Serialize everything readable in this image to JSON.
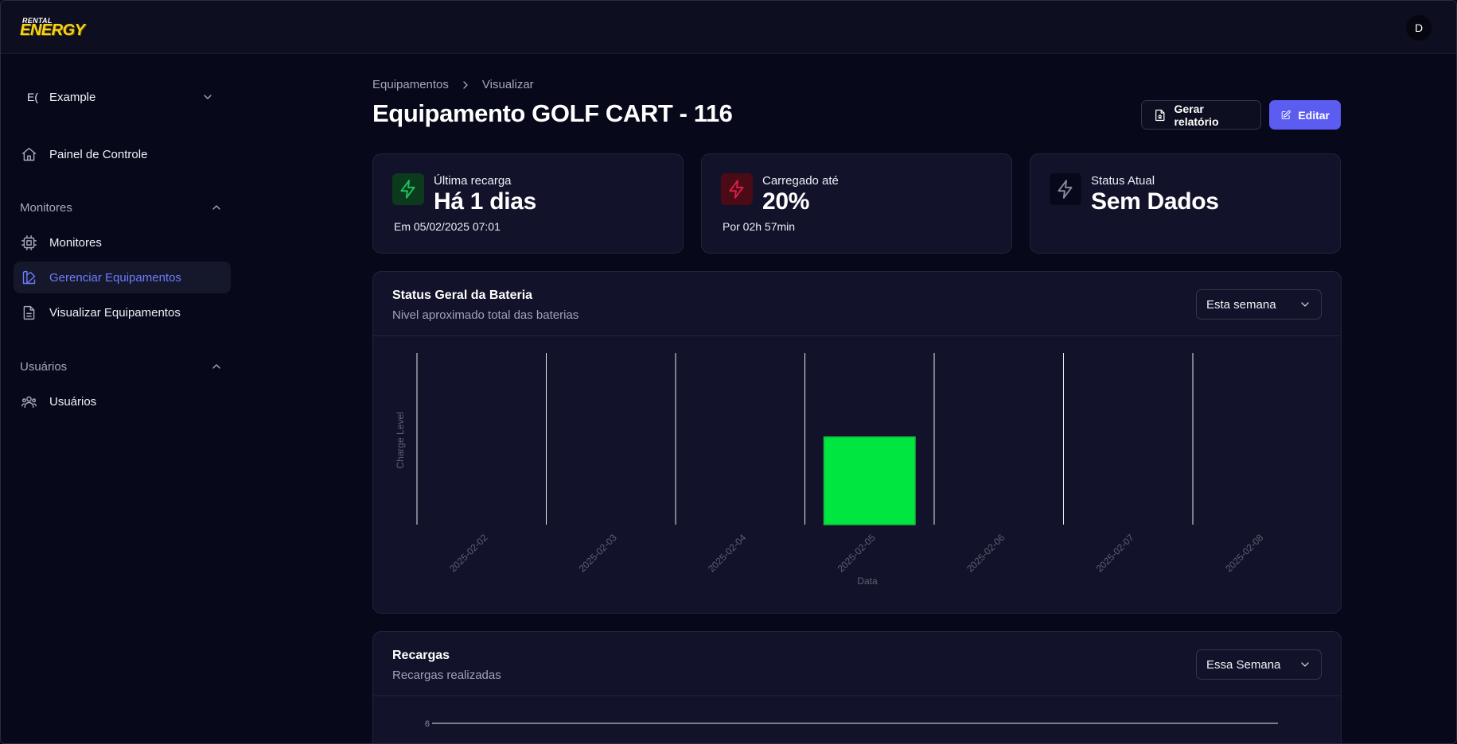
{
  "header": {
    "logo_top": "RENTAL",
    "logo_main": "ENERGY",
    "avatar_initial": "D"
  },
  "sidebar": {
    "org_initial": "E(",
    "org_name": "Example",
    "items": [
      {
        "label": "Painel de Controle",
        "icon": "home-icon"
      },
      {
        "label": "Monitores",
        "icon": "chip-icon"
      },
      {
        "label": "Gerenciar Equipamentos",
        "icon": "manage-equipment-icon",
        "active": true
      },
      {
        "label": "Visualizar Equipamentos",
        "icon": "document-icon"
      },
      {
        "label": "Usuários",
        "icon": "users-icon"
      }
    ],
    "sections": [
      {
        "label": "Monitores"
      },
      {
        "label": "Usuários"
      }
    ]
  },
  "breadcrumb": {
    "parent": "Equipamentos",
    "current": "Visualizar"
  },
  "page": {
    "title": "Equipamento GOLF CART - 116",
    "report_button": "Gerar relatório",
    "edit_button": "Editar"
  },
  "stats": [
    {
      "label": "Última recarga",
      "value": "Há 1 dias",
      "sub": "Em 05/02/2025 07:01",
      "icon": "bolt-green-icon",
      "color": "#22c55e"
    },
    {
      "label": "Carregado até",
      "value": "20%",
      "sub": "Por 02h 57min",
      "icon": "bolt-red-icon",
      "color": "#e11d48"
    },
    {
      "label": "Status Atual",
      "value": "Sem Dados",
      "sub": "",
      "icon": "bolt-gray-icon",
      "color": "#8a8ea3"
    }
  ],
  "battery_card": {
    "title": "Status Geral da Bateria",
    "subtitle": "Nivel aproximado total das baterias",
    "period": "Esta semana"
  },
  "recargas_card": {
    "title": "Recargas",
    "subtitle": "Recargas realizadas",
    "period": "Essa Semana"
  },
  "chart_data": [
    {
      "type": "bar",
      "categories": [
        "2025-02-02",
        "2025-02-03",
        "2025-02-04",
        "2025-02-05",
        "2025-02-06",
        "2025-02-07",
        "2025-02-08"
      ],
      "bars": [
        {
          "category": "2025-02-05",
          "low": 0,
          "high": 52
        }
      ],
      "xlabel": "Data",
      "ylabel": "Charge Level",
      "ylim": [
        0,
        100
      ],
      "color": "#00e640"
    },
    {
      "type": "line",
      "yticks": [
        "6"
      ],
      "xlabel": "",
      "ylabel": ""
    }
  ]
}
